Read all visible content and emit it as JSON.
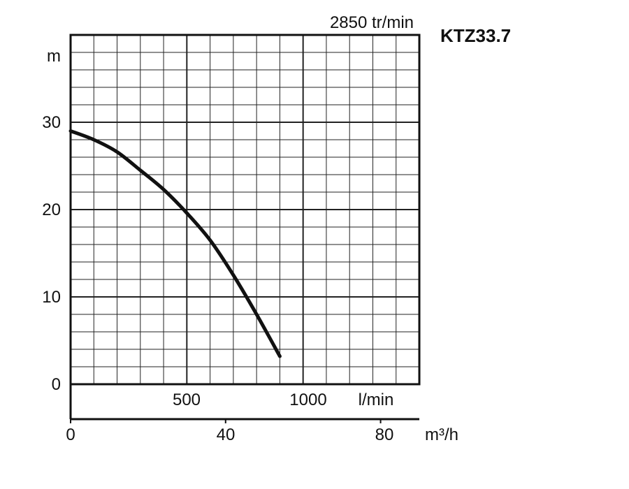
{
  "chart_data": {
    "type": "line",
    "title": "KTZ33.7",
    "subtitle": "2850 tr/min",
    "ylabel": "m",
    "ylim": [
      0,
      40
    ],
    "y_ticks": [
      0,
      10,
      20,
      30
    ],
    "x_lmin_ticks": [
      500,
      1000
    ],
    "x_lmin_label": "l/min",
    "x_lmin_range": [
      0,
      1500
    ],
    "x_m3h_ticks": [
      0,
      40,
      80
    ],
    "x_m3h_label": "m³/h",
    "x_m3h_range": [
      0,
      90
    ],
    "grid": true,
    "series": [
      {
        "x_lmin": [
          0,
          100,
          200,
          300,
          400,
          500,
          600,
          700,
          800,
          900
        ],
        "y_m": [
          29,
          28,
          26.6,
          24.5,
          22.3,
          19.6,
          16.5,
          12.5,
          8,
          3.2
        ]
      }
    ]
  },
  "style": {
    "line_color": "#111111",
    "grid_color": "#222222",
    "background": "#ffffff"
  }
}
